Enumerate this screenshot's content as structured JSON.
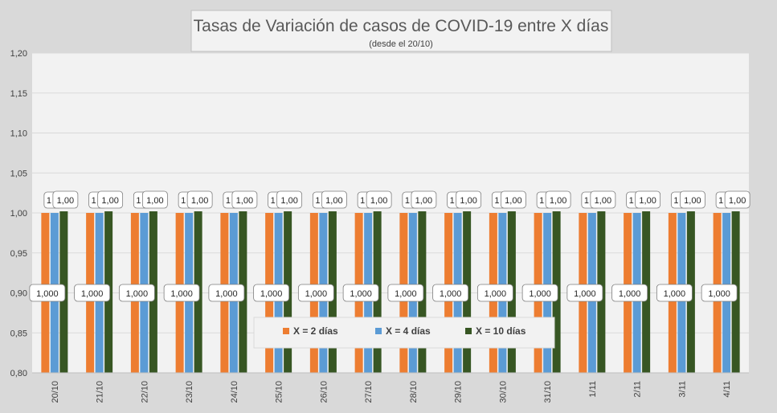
{
  "chart_data": {
    "type": "bar",
    "title": "Tasas de Variación de casos de COVID-19 entre X días",
    "subtitle": "(desde el 20/10)",
    "categories": [
      "20/10",
      "21/10",
      "22/10",
      "23/10",
      "24/10",
      "25/10",
      "26/10",
      "27/10",
      "28/10",
      "29/10",
      "30/10",
      "31/10",
      "1/11",
      "2/11",
      "3/11",
      "4/11"
    ],
    "yticks": [
      "0,80",
      "0,85",
      "0,90",
      "0,95",
      "1,00",
      "1,05",
      "1,10",
      "1,15",
      "1,20"
    ],
    "ylim": [
      0.8,
      1.2
    ],
    "grid": true,
    "legend_position": "bottom-center",
    "series": [
      {
        "name": "X = 2 días",
        "color": "#ed7d31",
        "values": [
          1,
          1,
          1,
          1,
          1,
          1,
          1,
          1,
          1,
          1,
          1,
          1,
          1,
          1,
          1,
          1
        ],
        "labels": [
          "1,000",
          "1,000",
          "1,000",
          "1,000",
          "1,000",
          "1,000",
          "1,000",
          "1,000",
          "1,000",
          "1,000",
          "1,000",
          "1,000",
          "1,000",
          "1,000",
          "1,000",
          "1,000"
        ]
      },
      {
        "name": "X = 4 días",
        "color": "#5b9bd5",
        "values": [
          1,
          1,
          1,
          1,
          1,
          1,
          1,
          1,
          1,
          1,
          1,
          1,
          1,
          1,
          1,
          1
        ],
        "labels": [
          "1",
          "1",
          "1",
          "1",
          "1",
          "1",
          "1",
          "1",
          "1",
          "1",
          "1",
          "1",
          "1",
          "1",
          "1",
          "1"
        ]
      },
      {
        "name": "X = 10 días",
        "color": "#375623",
        "values": [
          1.002,
          1.002,
          1.002,
          1.002,
          1.002,
          1.002,
          1.002,
          1.002,
          1.002,
          1.002,
          1.002,
          1.002,
          1.002,
          1.002,
          1.002,
          1.002
        ],
        "labels": [
          "1,00",
          "1,00",
          "1,00",
          "1,00",
          "1,00",
          "1,00",
          "1,00",
          "1,00",
          "1,00",
          "1,00",
          "1,00",
          "1,00",
          "1,00",
          "1,00",
          "1,00",
          "1,00"
        ]
      }
    ]
  }
}
